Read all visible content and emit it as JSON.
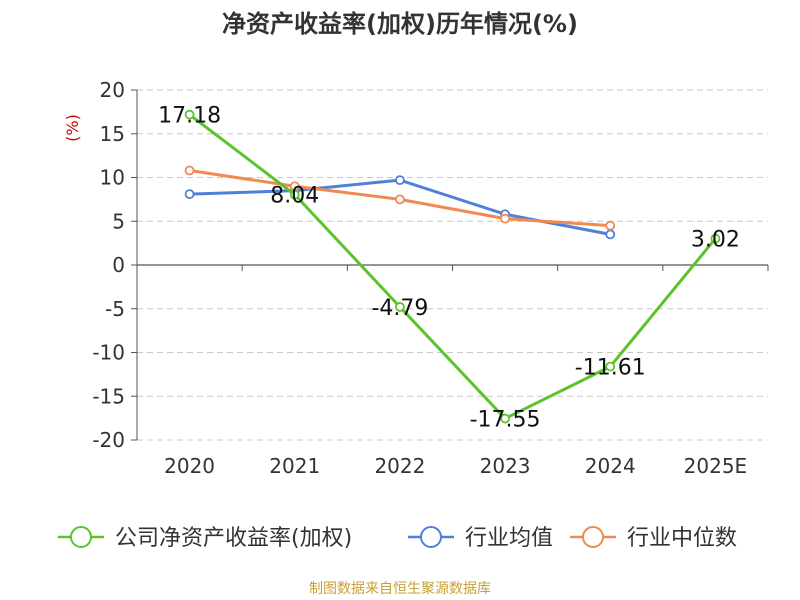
{
  "chart_data": {
    "type": "line",
    "title": "净资产收益率(加权)历年情况(%)",
    "ylabel": "(%)",
    "xlabel": "",
    "categories": [
      "2020",
      "2021",
      "2022",
      "2023",
      "2024",
      "2025E"
    ],
    "ylim": [
      -20,
      20
    ],
    "yticks": [
      20,
      15,
      10,
      5,
      0,
      -5,
      -10,
      -15,
      -20
    ],
    "grid": true,
    "legend_position": "bottom",
    "series": [
      {
        "name": "公司净资产收益率(加权)",
        "color": "#5ac42a",
        "values": [
          17.18,
          8.04,
          -4.79,
          -17.55,
          -11.61,
          3.02
        ],
        "labels": [
          "17.18",
          "8.04",
          "-4.79",
          "-17.55",
          "-11.61",
          "3.02"
        ]
      },
      {
        "name": "行业均值",
        "color": "#4f7fdb",
        "values": [
          8.1,
          8.5,
          9.7,
          5.8,
          3.5,
          null
        ]
      },
      {
        "name": "行业中位数",
        "color": "#f08a52",
        "values": [
          10.8,
          9.0,
          7.5,
          5.3,
          4.5,
          null
        ]
      }
    ]
  },
  "footer": {
    "source": "制图数据来自恒生聚源数据库"
  }
}
